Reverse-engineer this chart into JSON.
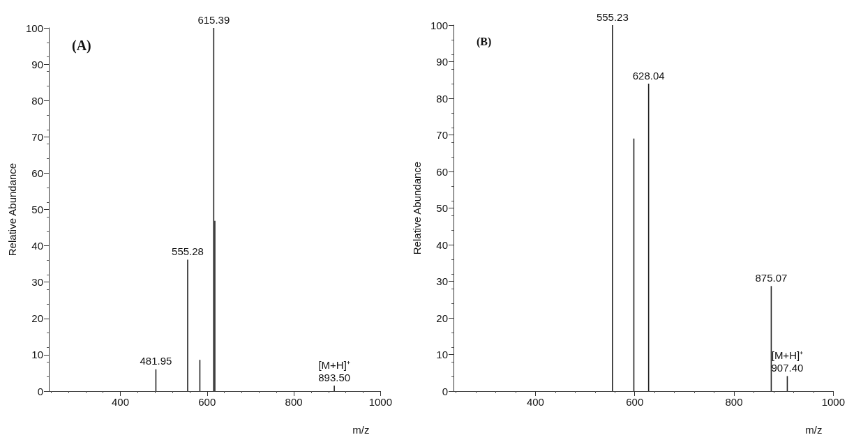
{
  "chart_data": [
    {
      "type": "bar",
      "title": "(A)",
      "xlabel": "m/z",
      "ylabel": "Relative Abundance",
      "x": [
        481.95,
        555.28,
        583.4,
        615.39,
        618,
        893.5
      ],
      "values": [
        6,
        36.2,
        8.6,
        100,
        46.9,
        1.5
      ],
      "color": "#222222",
      "annotations": [
        {
          "text": "481.95",
          "x": 481.95,
          "y": 6
        },
        {
          "text": "555.28",
          "x": 555.28,
          "y": 36.2
        },
        {
          "text": "615.39",
          "x": 615.39,
          "y": 100
        },
        {
          "text": "[M+H]⁺\n893.50",
          "x": 893.5,
          "y": 1.5
        }
      ],
      "xlim": [
        235,
        1000
      ],
      "xticks": [
        400,
        600,
        800,
        1000
      ],
      "ylim": [
        0,
        100
      ],
      "yticks": [
        0,
        10,
        20,
        30,
        40,
        50,
        60,
        70,
        80,
        90,
        100
      ],
      "grid": false
    },
    {
      "type": "bar",
      "title": "(B)",
      "xlabel": "m/z",
      "ylabel": "Relative Abundance",
      "x": [
        555.23,
        598.3,
        628.04,
        875.07,
        907.4
      ],
      "values": [
        100,
        69,
        84,
        28.7,
        4.1
      ],
      "color": "#222222",
      "annotations": [
        {
          "text": "555.23",
          "x": 555.23,
          "y": 100
        },
        {
          "text": "628.04",
          "x": 628.04,
          "y": 84
        },
        {
          "text": "875.07",
          "x": 875.07,
          "y": 28.7
        },
        {
          "text": "[M+H]⁺\n907.40",
          "x": 907.4,
          "y": 4.1
        }
      ],
      "xlim": [
        235,
        1000
      ],
      "xticks": [
        400,
        600,
        800,
        1000
      ],
      "ylim": [
        0,
        100
      ],
      "yticks": [
        0,
        10,
        20,
        30,
        40,
        50,
        60,
        70,
        80,
        90,
        100
      ],
      "grid": false
    }
  ]
}
